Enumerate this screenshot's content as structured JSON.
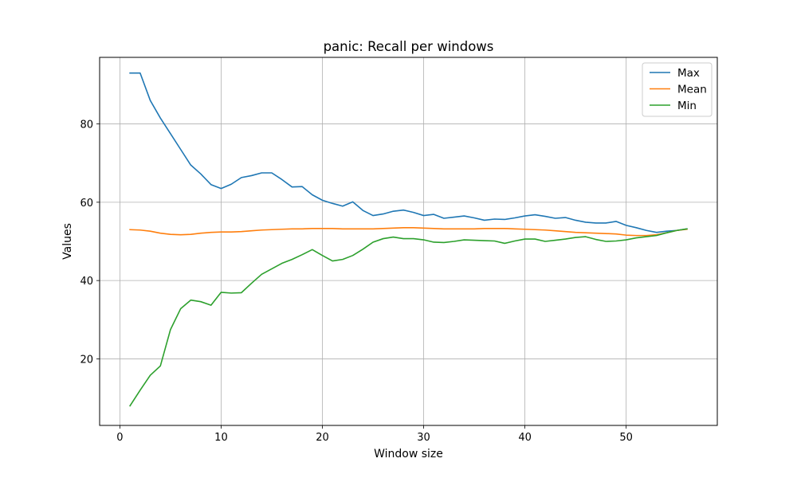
{
  "chart_data": {
    "type": "line",
    "title": "panic: Recall per windows",
    "xlabel": "Window size",
    "ylabel": "Values",
    "xlim": [
      -2,
      59
    ],
    "ylim": [
      3,
      97
    ],
    "xticks": [
      0,
      10,
      20,
      30,
      40,
      50
    ],
    "yticks": [
      20,
      40,
      60,
      80
    ],
    "grid": true,
    "legend_position": "top-right",
    "x": [
      1,
      2,
      3,
      4,
      5,
      6,
      7,
      8,
      9,
      10,
      11,
      12,
      13,
      14,
      15,
      16,
      17,
      18,
      19,
      20,
      21,
      22,
      23,
      24,
      25,
      26,
      27,
      28,
      29,
      30,
      31,
      32,
      33,
      34,
      35,
      36,
      37,
      38,
      39,
      40,
      41,
      42,
      43,
      44,
      45,
      46,
      47,
      48,
      49,
      50,
      51,
      52,
      53,
      54,
      55,
      56
    ],
    "series": [
      {
        "name": "Max",
        "color": "#1f77b4",
        "values": [
          93.0,
          93.0,
          86.0,
          81.5,
          77.5,
          73.5,
          69.5,
          67.2,
          64.5,
          63.5,
          64.6,
          66.3,
          66.8,
          67.5,
          67.5,
          65.8,
          63.9,
          64.0,
          61.9,
          60.5,
          59.7,
          59.0,
          60.1,
          57.9,
          56.6,
          57.0,
          57.7,
          58.0,
          57.4,
          56.6,
          56.9,
          55.9,
          56.2,
          56.5,
          56.0,
          55.4,
          55.7,
          55.6,
          56.0,
          56.5,
          56.8,
          56.4,
          55.9,
          56.1,
          55.4,
          54.9,
          54.7,
          54.7,
          55.1,
          54.1,
          53.5,
          52.8,
          52.3,
          52.6,
          52.8,
          53.2
        ]
      },
      {
        "name": "Mean",
        "color": "#ff7f0e",
        "values": [
          53.0,
          52.9,
          52.6,
          52.1,
          51.8,
          51.7,
          51.8,
          52.1,
          52.3,
          52.4,
          52.4,
          52.5,
          52.7,
          52.9,
          53.0,
          53.1,
          53.2,
          53.2,
          53.3,
          53.3,
          53.3,
          53.2,
          53.2,
          53.2,
          53.2,
          53.3,
          53.4,
          53.5,
          53.5,
          53.4,
          53.3,
          53.2,
          53.2,
          53.2,
          53.2,
          53.3,
          53.3,
          53.3,
          53.2,
          53.1,
          53.0,
          52.9,
          52.7,
          52.5,
          52.3,
          52.2,
          52.1,
          52.0,
          51.9,
          51.6,
          51.5,
          51.5,
          51.7,
          52.2,
          52.8,
          53.1
        ]
      },
      {
        "name": "Min",
        "color": "#2ca02c",
        "values": [
          8.0,
          12.0,
          15.8,
          18.2,
          27.5,
          32.8,
          35.0,
          34.6,
          33.7,
          37.0,
          36.8,
          36.9,
          39.3,
          41.6,
          43.0,
          44.4,
          45.4,
          46.6,
          47.9,
          46.4,
          45.0,
          45.4,
          46.4,
          48.0,
          49.8,
          50.7,
          51.1,
          50.7,
          50.7,
          50.4,
          49.8,
          49.7,
          50.0,
          50.4,
          50.3,
          50.2,
          50.1,
          49.5,
          50.1,
          50.6,
          50.6,
          50.0,
          50.3,
          50.6,
          51.0,
          51.2,
          50.5,
          50.0,
          50.1,
          50.4,
          50.9,
          51.2,
          51.5,
          52.2,
          52.8,
          53.2
        ]
      }
    ]
  }
}
